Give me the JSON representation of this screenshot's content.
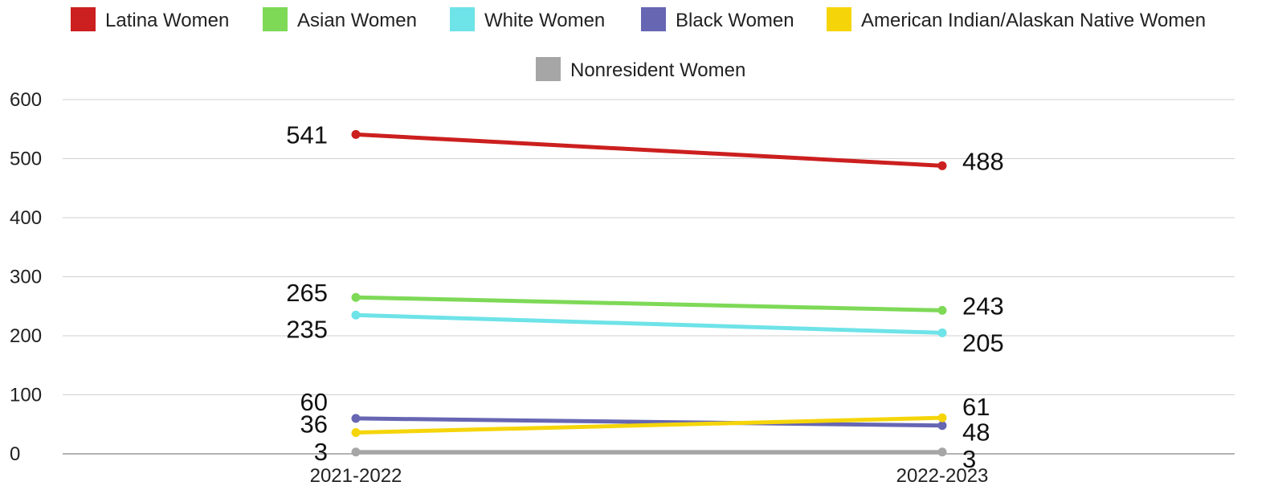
{
  "chart_data": {
    "type": "line",
    "title": "",
    "xlabel": "",
    "ylabel": "",
    "categories": [
      "2021-2022",
      "2022-2023"
    ],
    "ylim": [
      0,
      600
    ],
    "yticks": [
      "0",
      "100",
      "200",
      "300",
      "400",
      "500",
      "600"
    ],
    "grid": true,
    "legend_position": "top",
    "series": [
      {
        "name": "Latina Women",
        "color": "#cc1f1f",
        "values": [
          541,
          488
        ]
      },
      {
        "name": "Asian Women",
        "color": "#7ed957",
        "values": [
          265,
          243
        ]
      },
      {
        "name": "White Women",
        "color": "#6ee3e8",
        "values": [
          235,
          205
        ]
      },
      {
        "name": "Black Women",
        "color": "#6666b3",
        "values": [
          60,
          48
        ]
      },
      {
        "name": "American Indian/Alaskan Native Women",
        "color": "#f5d50a",
        "values": [
          36,
          61
        ]
      },
      {
        "name": "Nonresident Women",
        "color": "#a6a6a6",
        "values": [
          3,
          3
        ]
      }
    ]
  }
}
